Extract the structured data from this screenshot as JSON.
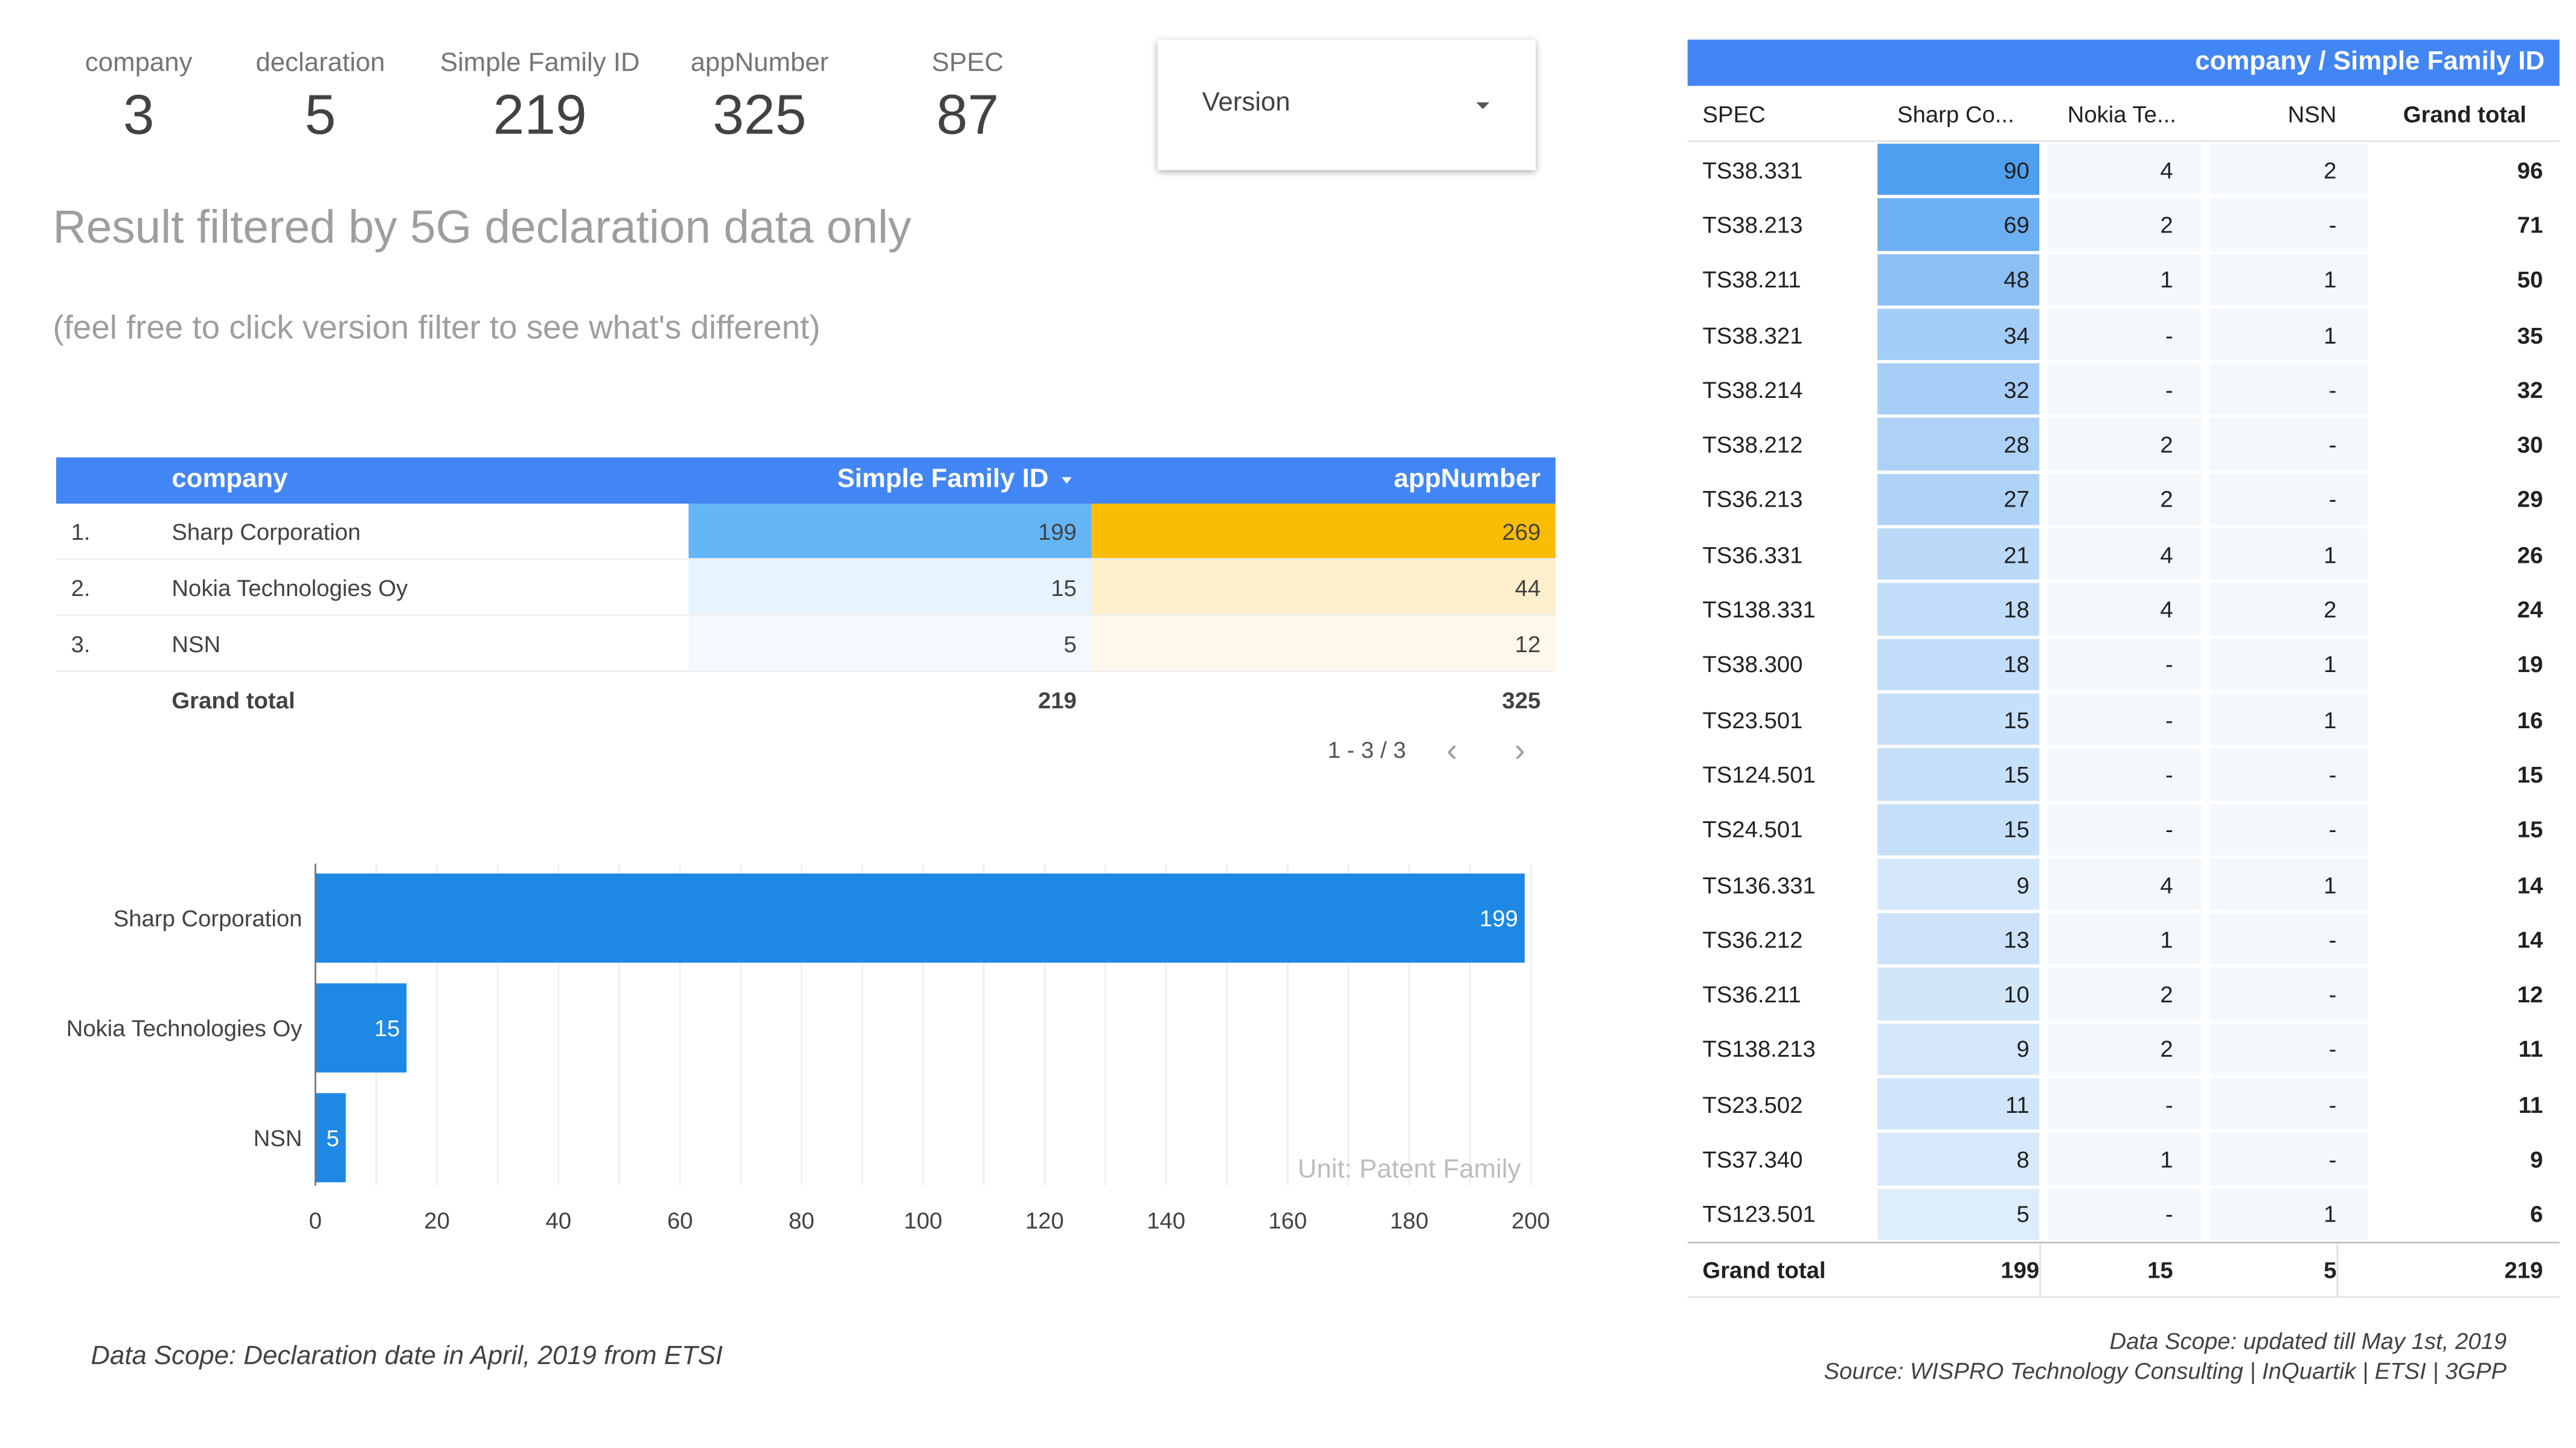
{
  "scorecards": [
    {
      "label": "company",
      "value": "3"
    },
    {
      "label": "declaration",
      "value": "5"
    },
    {
      "label": "Simple Family ID",
      "value": "219"
    },
    {
      "label": "appNumber",
      "value": "325"
    },
    {
      "label": "SPEC",
      "value": "87"
    }
  ],
  "filter": {
    "label": "Version"
  },
  "headline": "Result filtered by 5G declaration data only",
  "subline": "(feel free to click version filter to see what's different)",
  "company_table": {
    "headers": {
      "company": "company",
      "family": "Simple Family ID",
      "app": "appNumber"
    },
    "rows": [
      {
        "index": "1.",
        "company": "Sharp Corporation",
        "family": 199,
        "app": 269
      },
      {
        "index": "2.",
        "company": "Nokia Technologies Oy",
        "family": 15,
        "app": 44
      },
      {
        "index": "3.",
        "company": "NSN",
        "family": 5,
        "app": 12
      }
    ],
    "total": {
      "label": "Grand total",
      "family": 219,
      "app": 325
    },
    "pagination": "1 - 3 / 3",
    "colors": {
      "header": "#4285f4",
      "family_heat": "#64b5f6",
      "app_heat": "#fbbc04"
    }
  },
  "chart_data": {
    "type": "bar",
    "orientation": "horizontal",
    "categories": [
      "Sharp Corporation",
      "Nokia Technologies Oy",
      "NSN"
    ],
    "values": [
      199,
      15,
      5
    ],
    "x_ticks": [
      0,
      20,
      40,
      60,
      80,
      100,
      120,
      140,
      160,
      180,
      200
    ],
    "xlim": [
      0,
      200
    ],
    "annotation": "Unit: Patent Family",
    "grid": true,
    "bar_color": "#1e88e5",
    "title": ""
  },
  "footnote_left": "Data Scope: Declaration date in April, 2019 from ETSI",
  "pivot": {
    "title": "company / Simple Family ID",
    "headers": [
      "SPEC",
      "Sharp Co...",
      "Nokia Te...",
      "NSN",
      "Grand total"
    ],
    "rows": [
      {
        "spec": "TS38.331",
        "sharp": "90",
        "nokia": "4",
        "nsn": "2",
        "total": "96"
      },
      {
        "spec": "TS38.213",
        "sharp": "69",
        "nokia": "2",
        "nsn": "-",
        "total": "71"
      },
      {
        "spec": "TS38.211",
        "sharp": "48",
        "nokia": "1",
        "nsn": "1",
        "total": "50"
      },
      {
        "spec": "TS38.321",
        "sharp": "34",
        "nokia": "-",
        "nsn": "1",
        "total": "35"
      },
      {
        "spec": "TS38.214",
        "sharp": "32",
        "nokia": "-",
        "nsn": "-",
        "total": "32"
      },
      {
        "spec": "TS38.212",
        "sharp": "28",
        "nokia": "2",
        "nsn": "-",
        "total": "30"
      },
      {
        "spec": "TS36.213",
        "sharp": "27",
        "nokia": "2",
        "nsn": "-",
        "total": "29"
      },
      {
        "spec": "TS36.331",
        "sharp": "21",
        "nokia": "4",
        "nsn": "1",
        "total": "26"
      },
      {
        "spec": "TS138.331",
        "sharp": "18",
        "nokia": "4",
        "nsn": "2",
        "total": "24"
      },
      {
        "spec": "TS38.300",
        "sharp": "18",
        "nokia": "-",
        "nsn": "1",
        "total": "19"
      },
      {
        "spec": "TS23.501",
        "sharp": "15",
        "nokia": "-",
        "nsn": "1",
        "total": "16"
      },
      {
        "spec": "TS124.501",
        "sharp": "15",
        "nokia": "-",
        "nsn": "-",
        "total": "15"
      },
      {
        "spec": "TS24.501",
        "sharp": "15",
        "nokia": "-",
        "nsn": "-",
        "total": "15"
      },
      {
        "spec": "TS136.331",
        "sharp": "9",
        "nokia": "4",
        "nsn": "1",
        "total": "14"
      },
      {
        "spec": "TS36.212",
        "sharp": "13",
        "nokia": "1",
        "nsn": "-",
        "total": "14"
      },
      {
        "spec": "TS36.211",
        "sharp": "10",
        "nokia": "2",
        "nsn": "-",
        "total": "12"
      },
      {
        "spec": "TS138.213",
        "sharp": "9",
        "nokia": "2",
        "nsn": "-",
        "total": "11"
      },
      {
        "spec": "TS23.502",
        "sharp": "11",
        "nokia": "-",
        "nsn": "-",
        "total": "11"
      },
      {
        "spec": "TS37.340",
        "sharp": "8",
        "nokia": "1",
        "nsn": "-",
        "total": "9"
      },
      {
        "spec": "TS123.501",
        "sharp": "5",
        "nokia": "-",
        "nsn": "1",
        "total": "6"
      }
    ],
    "total": {
      "label": "Grand total",
      "sharp": "199",
      "nokia": "15",
      "nsn": "5",
      "total": "219"
    },
    "colors": {
      "header": "#4285f4",
      "heat_max": "#4f9fef",
      "heat_min": "#f1f7fd"
    }
  },
  "footnote_right": [
    "Data Scope: updated till May 1st, 2019",
    "Source: WISPRO Technology Consulting | InQuartik | ETSI | 3GPP"
  ]
}
